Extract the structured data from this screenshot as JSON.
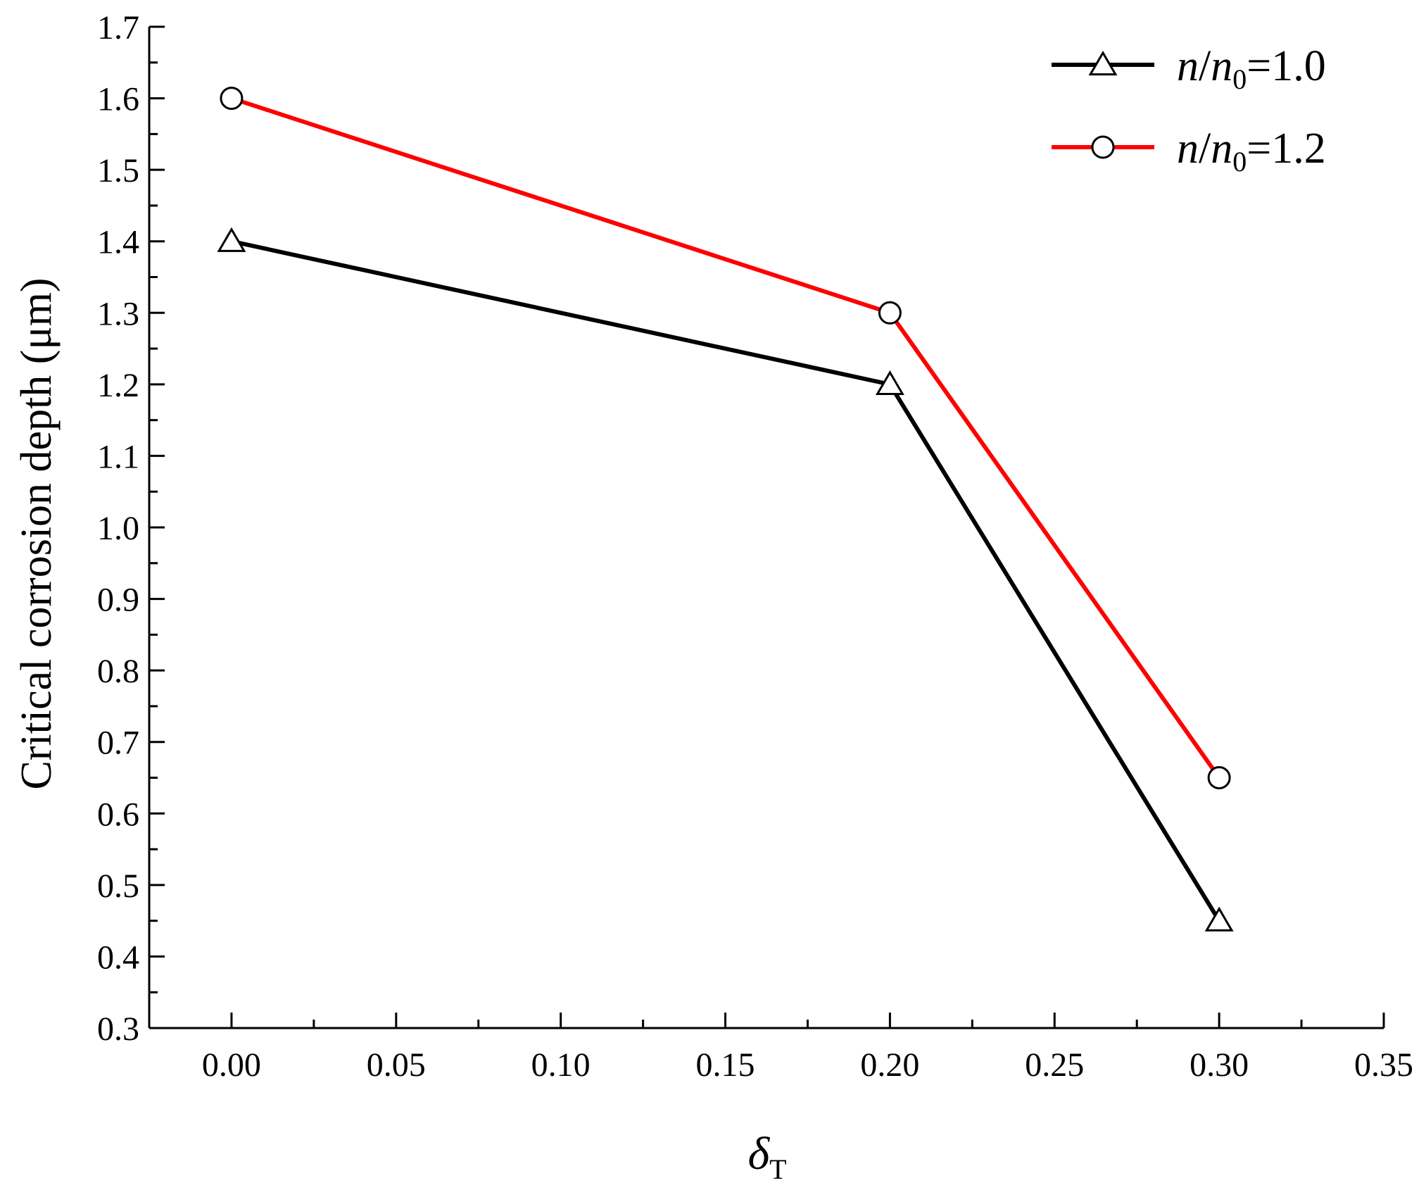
{
  "chart_data": {
    "type": "line",
    "xlabel": {
      "main": "δ",
      "sub": "T"
    },
    "ylabel": "Critical corrosion depth (μm)",
    "xlim": [
      -0.025,
      0.35
    ],
    "ylim": [
      0.3,
      1.7
    ],
    "x_ticks": [
      0.0,
      0.05,
      0.1,
      0.15,
      0.2,
      0.25,
      0.3,
      0.35
    ],
    "x_tick_labels": [
      "0.00",
      "0.05",
      "0.10",
      "0.15",
      "0.20",
      "0.25",
      "0.30",
      "0.35"
    ],
    "y_ticks": [
      0.3,
      0.4,
      0.5,
      0.6,
      0.7,
      0.8,
      0.9,
      1.0,
      1.1,
      1.2,
      1.3,
      1.4,
      1.5,
      1.6,
      1.7
    ],
    "y_tick_labels": [
      "0.3",
      "0.4",
      "0.5",
      "0.6",
      "0.7",
      "0.8",
      "0.9",
      "1.0",
      "1.1",
      "1.2",
      "1.3",
      "1.4",
      "1.5",
      "1.6",
      "1.7"
    ],
    "grid": false,
    "legend_position": "top-right",
    "series": [
      {
        "name": "n/n0=1.0",
        "label_parts": {
          "var": "n",
          "slash": "/",
          "base": "n",
          "sub": "0",
          "value": "=1.0"
        },
        "marker": "triangle",
        "color": "#000000",
        "x": [
          0.0,
          0.2,
          0.3
        ],
        "y": [
          1.4,
          1.2,
          0.45
        ]
      },
      {
        "name": "n/n0=1.2",
        "label_parts": {
          "var": "n",
          "slash": "/",
          "base": "n",
          "sub": "0",
          "value": "=1.2"
        },
        "marker": "circle",
        "color": "#ff0000",
        "x": [
          0.0,
          0.2,
          0.3
        ],
        "y": [
          1.6,
          1.3,
          0.65
        ]
      }
    ]
  }
}
